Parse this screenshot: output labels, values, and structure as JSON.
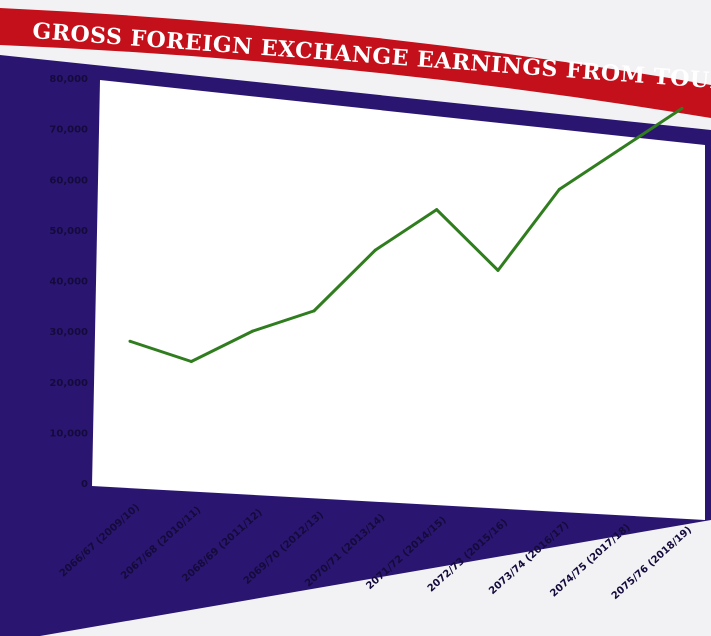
{
  "chart_data": {
    "type": "line",
    "title": "GROSS FOREIGN EXCHANGE EARNINGS FROM TOURISM",
    "xlabel": "",
    "ylabel": "",
    "ylim": [
      0,
      80000
    ],
    "yticks": [
      "0",
      "10,000",
      "20,000",
      "30,000",
      "40,000",
      "50,000",
      "60,000",
      "70,000",
      "80,000"
    ],
    "categories": [
      "2066/67 (2009/10)",
      "2067/68 (2010/11)",
      "2068/69 (2011/12)",
      "2069/70 (2012/13)",
      "2070/71 (2013/14)",
      "2071/72 (2014/15)",
      "2072/73 (2015/16)",
      "2073/74 (2016/17)",
      "2074/75 (2017/18)",
      "2075/76 (2018/19)"
    ],
    "series": [
      {
        "values": [
          28000,
          24000,
          30000,
          34000,
          46000,
          54000,
          42000,
          58000,
          66000,
          74000
        ]
      }
    ],
    "grid": false,
    "legend": "none",
    "colors": {
      "line": "#2f7d1e",
      "plot_bg": "#ffffff",
      "frame": "#2a1670",
      "banner": "#c4101a",
      "ticks": "#150a3c"
    }
  }
}
